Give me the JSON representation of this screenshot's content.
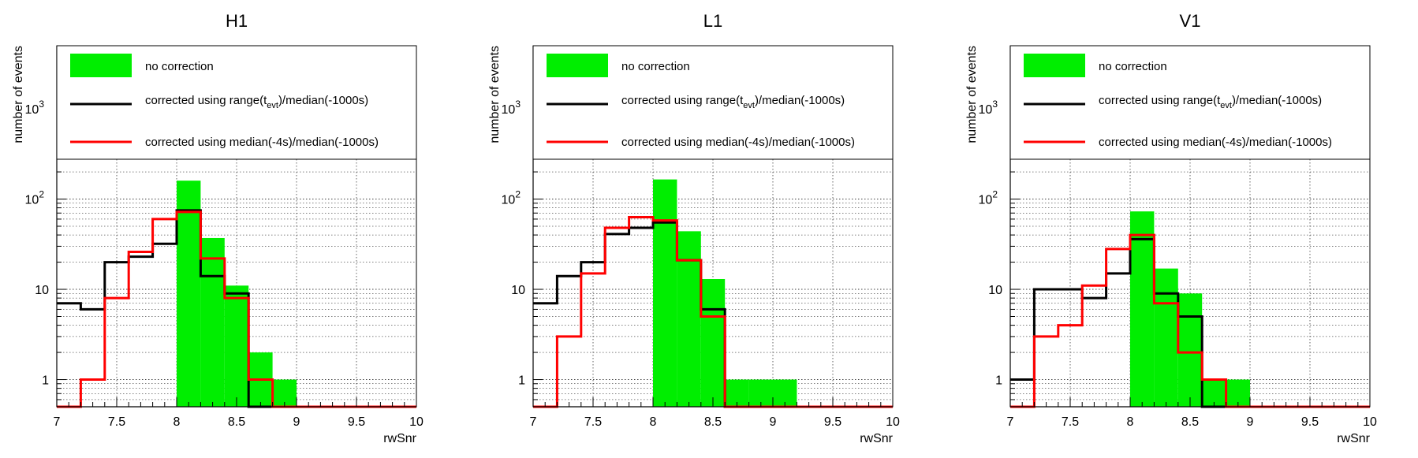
{
  "chart_data": [
    {
      "type": "histogram",
      "title": "H1",
      "xlabel": "rwSnr",
      "ylabel": "number of events",
      "xlim": [
        7,
        10
      ],
      "ylim": [
        0.5,
        5000
      ],
      "yscale": "log",
      "grid": true,
      "legend_position": "top",
      "x_ticks": [
        "7",
        "7.5",
        "8",
        "8.5",
        "9",
        "9.5",
        "10"
      ],
      "y_ticks": [
        {
          "value": 1,
          "label": "1"
        },
        {
          "value": 10,
          "label": "10"
        },
        {
          "value": 100,
          "base": "10",
          "exp": "2"
        },
        {
          "value": 1000,
          "base": "10",
          "exp": "3"
        }
      ],
      "bin_edges": [
        7,
        7.2,
        7.4,
        7.6,
        7.8,
        8,
        8.2,
        8.4,
        8.6,
        8.8,
        9,
        9.2,
        9.4,
        9.6,
        9.8,
        10
      ],
      "series": [
        {
          "name": "no correction",
          "style": "fill",
          "color": "#00ee00",
          "values": [
            0,
            0,
            0,
            0,
            0,
            160,
            37,
            11,
            2,
            1,
            0,
            0,
            0,
            0,
            0
          ]
        },
        {
          "name": "corrected using range(t_evt)/median(-1000s)",
          "style": "step",
          "color": "#000000",
          "values": [
            7,
            6,
            20,
            23,
            32,
            75,
            14,
            9,
            0,
            0,
            0,
            0,
            0,
            0,
            0
          ]
        },
        {
          "name": "corrected using median(-4s)/median(-1000s)",
          "style": "step",
          "color": "#ff0000",
          "values": [
            0,
            1,
            8,
            26,
            60,
            72,
            22,
            8,
            1,
            0,
            0,
            0,
            0,
            0,
            0
          ]
        }
      ]
    },
    {
      "type": "histogram",
      "title": "L1",
      "xlabel": "rwSnr",
      "ylabel": "number of events",
      "xlim": [
        7,
        10
      ],
      "ylim": [
        0.5,
        5000
      ],
      "yscale": "log",
      "grid": true,
      "legend_position": "top",
      "x_ticks": [
        "7",
        "7.5",
        "8",
        "8.5",
        "9",
        "9.5",
        "10"
      ],
      "y_ticks": [
        {
          "value": 1,
          "label": "1"
        },
        {
          "value": 10,
          "label": "10"
        },
        {
          "value": 100,
          "base": "10",
          "exp": "2"
        },
        {
          "value": 1000,
          "base": "10",
          "exp": "3"
        }
      ],
      "bin_edges": [
        7,
        7.2,
        7.4,
        7.6,
        7.8,
        8,
        8.2,
        8.4,
        8.6,
        8.8,
        9,
        9.2,
        9.4,
        9.6,
        9.8,
        10
      ],
      "series": [
        {
          "name": "no correction",
          "style": "fill",
          "color": "#00ee00",
          "values": [
            0,
            0,
            0,
            0,
            0,
            165,
            44,
            13,
            1,
            1,
            1,
            0,
            0,
            0,
            0
          ]
        },
        {
          "name": "corrected using range(t_evt)/median(-1000s)",
          "style": "step",
          "color": "#000000",
          "values": [
            7,
            14,
            20,
            41,
            48,
            55,
            21,
            6,
            0,
            0,
            0,
            0,
            0,
            0,
            0
          ]
        },
        {
          "name": "corrected using median(-4s)/median(-1000s)",
          "style": "step",
          "color": "#ff0000",
          "values": [
            0,
            3,
            15,
            48,
            63,
            58,
            21,
            5,
            0,
            0,
            0,
            0,
            0,
            0,
            0
          ]
        }
      ]
    },
    {
      "type": "histogram",
      "title": "V1",
      "xlabel": "rwSnr",
      "ylabel": "number of events",
      "xlim": [
        7,
        10
      ],
      "ylim": [
        0.5,
        5000
      ],
      "yscale": "log",
      "grid": true,
      "legend_position": "top",
      "x_ticks": [
        "7",
        "7.5",
        "8",
        "8.5",
        "9",
        "9.5",
        "10"
      ],
      "y_ticks": [
        {
          "value": 1,
          "label": "1"
        },
        {
          "value": 10,
          "label": "10"
        },
        {
          "value": 100,
          "base": "10",
          "exp": "2"
        },
        {
          "value": 1000,
          "base": "10",
          "exp": "3"
        }
      ],
      "bin_edges": [
        7,
        7.2,
        7.4,
        7.6,
        7.8,
        8,
        8.2,
        8.4,
        8.6,
        8.8,
        9,
        9.2,
        9.4,
        9.6,
        9.8,
        10
      ],
      "series": [
        {
          "name": "no correction",
          "style": "fill",
          "color": "#00ee00",
          "values": [
            0,
            0,
            0,
            0,
            0,
            73,
            17,
            9,
            1,
            1,
            0,
            0,
            0,
            0,
            0
          ]
        },
        {
          "name": "corrected using range(t_evt)/median(-1000s)",
          "style": "step",
          "color": "#000000",
          "values": [
            1,
            10,
            10,
            8,
            15,
            36,
            9,
            5,
            0,
            0,
            0,
            0,
            0,
            0,
            0
          ]
        },
        {
          "name": "corrected using median(-4s)/median(-1000s)",
          "style": "step",
          "color": "#ff0000",
          "values": [
            0,
            3,
            4,
            11,
            28,
            40,
            7,
            2,
            1,
            0,
            0,
            0,
            0,
            0,
            0
          ]
        }
      ]
    }
  ],
  "legend": {
    "no_correction": "no correction",
    "range_prefix": "corrected using range(t",
    "range_sub": "evt",
    "range_suffix": ")/median(-1000s)",
    "median_label": "corrected using median(-4s)/median(-1000s)"
  }
}
